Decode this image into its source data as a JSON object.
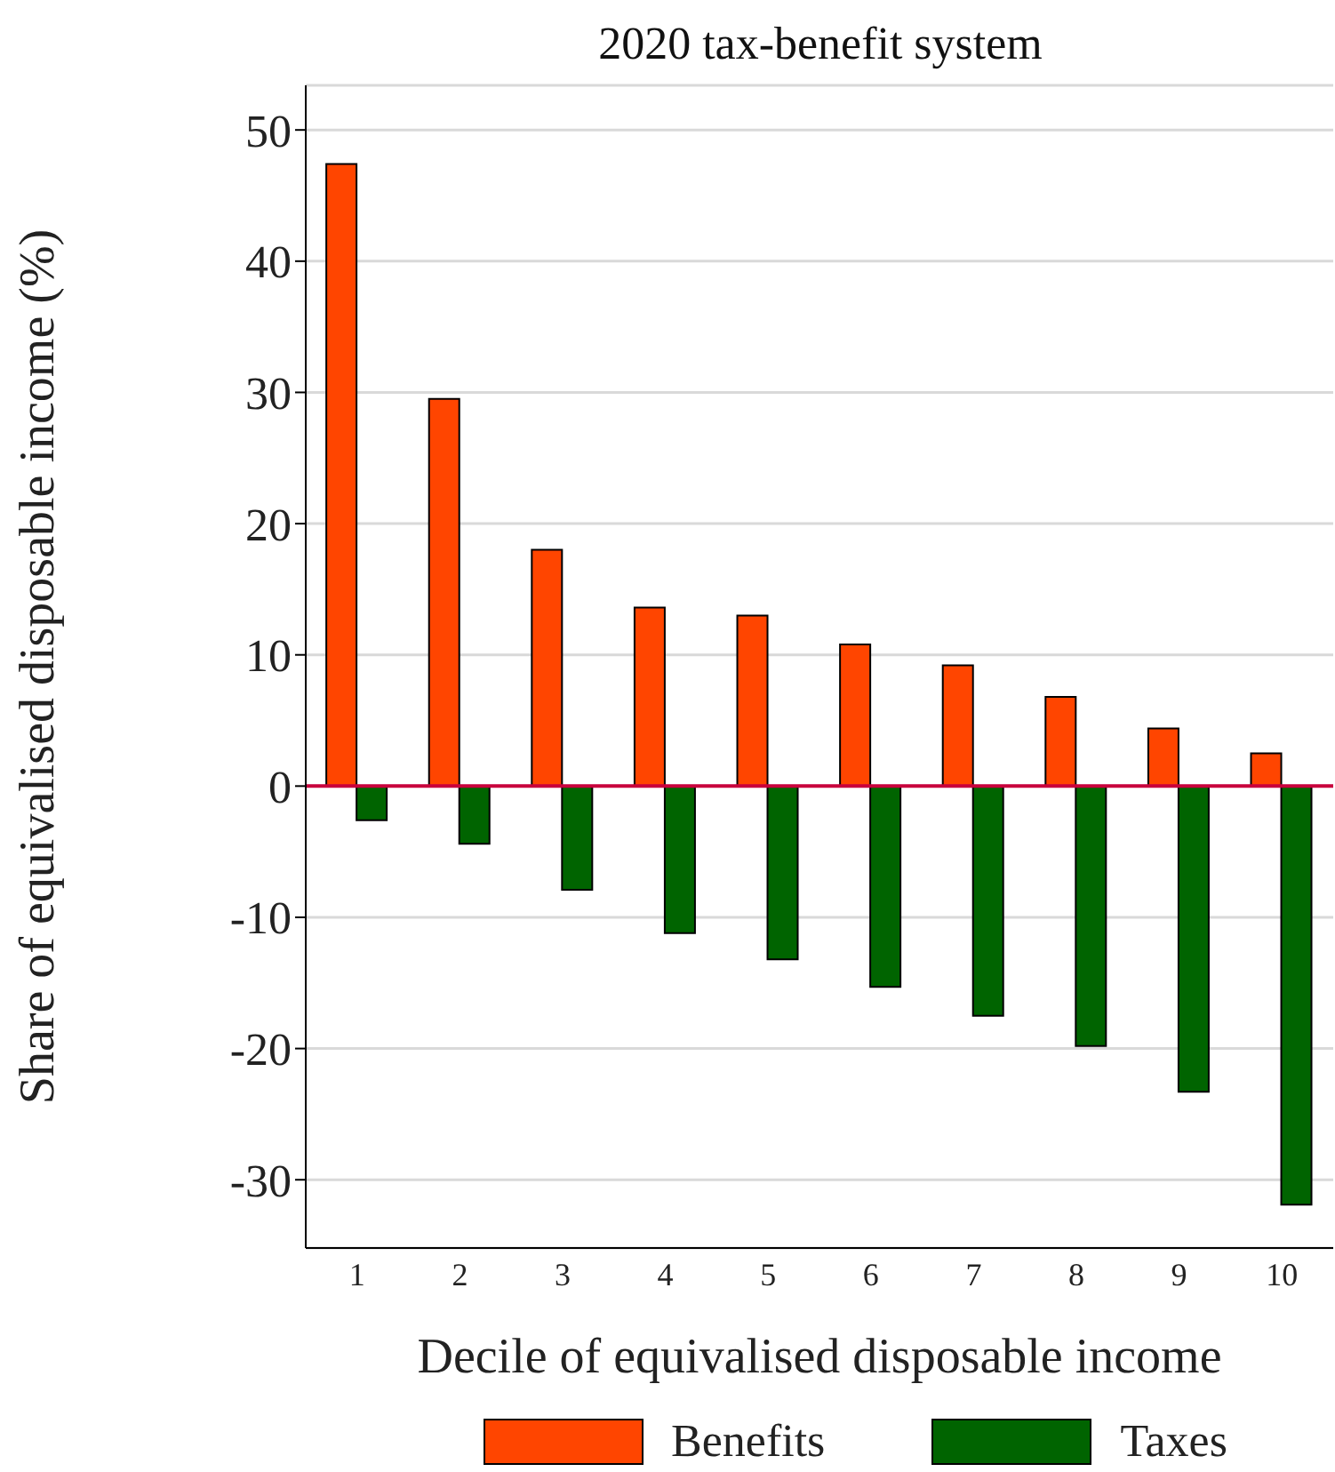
{
  "chart_data": {
    "type": "bar",
    "title": "2020 tax-benefit system",
    "xlabel": "Decile of equivalised disposable income",
    "ylabel": "Share of equivalised disposable income (%)",
    "categories": [
      "1",
      "2",
      "3",
      "4",
      "5",
      "6",
      "7",
      "8",
      "9",
      "10"
    ],
    "series": [
      {
        "name": "Benefits",
        "color": "#ff4500",
        "values": [
          47.4,
          29.5,
          18.0,
          13.6,
          13.0,
          10.8,
          9.2,
          6.8,
          4.4,
          2.5
        ]
      },
      {
        "name": "Taxes",
        "color": "#006400",
        "values": [
          -2.6,
          -4.4,
          -7.9,
          -11.2,
          -13.2,
          -15.3,
          -17.5,
          -19.8,
          -23.3,
          -31.9
        ]
      }
    ],
    "ylim": [
      -35.2,
      53.4
    ],
    "yticks": [
      -30,
      -20,
      -10,
      0,
      10,
      20,
      30,
      40,
      50
    ],
    "grid": "y",
    "legend": "bottom",
    "ref_lines": [
      {
        "axis": "y",
        "value": 0,
        "color": "#c8003c"
      }
    ]
  }
}
